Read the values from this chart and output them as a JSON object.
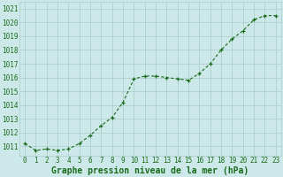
{
  "x": [
    0,
    1,
    2,
    3,
    4,
    5,
    6,
    7,
    8,
    9,
    10,
    11,
    12,
    13,
    14,
    15,
    16,
    17,
    18,
    19,
    20,
    21,
    22,
    23
  ],
  "y": [
    1011.2,
    1010.7,
    1010.8,
    1010.7,
    1010.8,
    1011.2,
    1011.8,
    1012.5,
    1013.1,
    1014.2,
    1015.9,
    1016.1,
    1016.1,
    1016.0,
    1015.9,
    1015.8,
    1016.3,
    1017.0,
    1018.0,
    1018.8,
    1019.4,
    1020.2,
    1020.5,
    1020.5
  ],
  "line_color": "#1a6b1a",
  "marker": "+",
  "marker_color": "#1a6b1a",
  "bg_color": "#cce8e8",
  "grid_color": "#aacccc",
  "xlabel": "Graphe pression niveau de la mer (hPa)",
  "xlabel_color": "#1a6b1a",
  "xlabel_fontsize": 7,
  "ylabel_ticks": [
    1011,
    1012,
    1013,
    1014,
    1015,
    1016,
    1017,
    1018,
    1019,
    1020,
    1021
  ],
  "xlim": [
    -0.5,
    23.5
  ],
  "ylim": [
    1010.3,
    1021.5
  ],
  "tick_color": "#1a6b1a",
  "tick_fontsize": 5.5,
  "line_width": 0.8,
  "marker_size": 3.5,
  "marker_edge_width": 0.9
}
